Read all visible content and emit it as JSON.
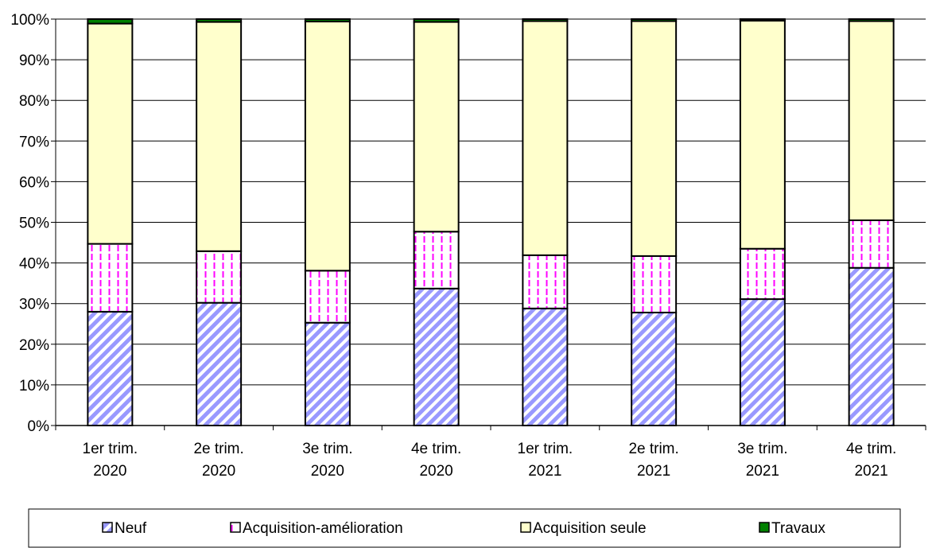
{
  "chart_data": {
    "type": "bar",
    "stacked": "percent",
    "title": "",
    "xlabel": "",
    "ylabel": "",
    "ylim": [
      0,
      100
    ],
    "yticks": [
      "0%",
      "10%",
      "20%",
      "30%",
      "40%",
      "50%",
      "60%",
      "70%",
      "80%",
      "90%",
      "100%"
    ],
    "grid": "horizontal",
    "legend_position": "bottom",
    "categories": [
      [
        "1er trim.",
        "2020"
      ],
      [
        "2e trim.",
        "2020"
      ],
      [
        "3e trim.",
        "2020"
      ],
      [
        "4e trim.",
        "2020"
      ],
      [
        "1er trim.",
        "2021"
      ],
      [
        "2e trim.",
        "2021"
      ],
      [
        "3e trim.",
        "2021"
      ],
      [
        "4e trim.",
        "2021"
      ]
    ],
    "series": [
      {
        "name": "Neuf",
        "color": "#9999ff",
        "pattern": "diagonal-stripes",
        "values": [
          28,
          30.2,
          25.3,
          33.7,
          28.8,
          27.8,
          31.1,
          38.8
        ]
      },
      {
        "name": "Acquisition-amélioration",
        "color": "#ff00ff",
        "pattern": "dashed-vertical",
        "values": [
          16.7,
          12.7,
          12.8,
          14.0,
          13.1,
          13.9,
          12.4,
          11.7
        ]
      },
      {
        "name": "Acquisition seule",
        "color": "#ffffcc",
        "pattern": "solid",
        "values": [
          54.2,
          56.4,
          61.3,
          51.6,
          57.6,
          57.8,
          56.1,
          49.0
        ]
      },
      {
        "name": "Travaux",
        "color": "#008000",
        "pattern": "solid",
        "values": [
          1.1,
          0.7,
          0.6,
          0.7,
          0.5,
          0.5,
          0.4,
          0.5
        ]
      }
    ]
  }
}
